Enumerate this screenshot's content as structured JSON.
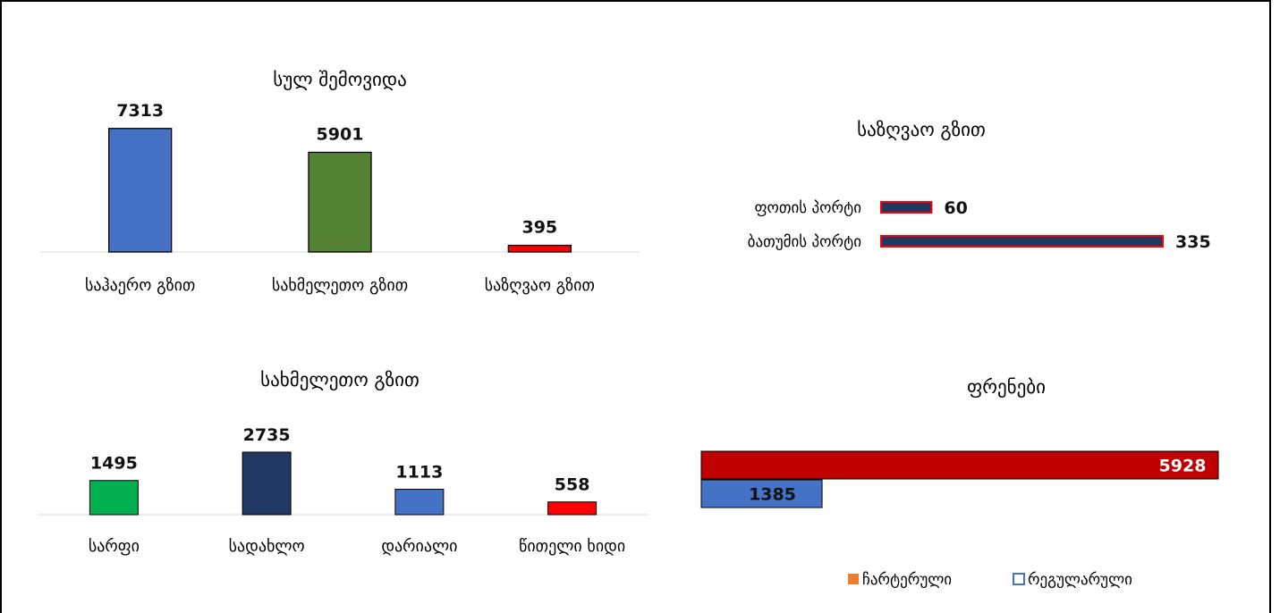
{
  "chart_data": [
    {
      "type": "bar",
      "title": "სულ შემოვიდა",
      "categories": [
        "საჰაერო გზით",
        "სახმელეთო გზით",
        "საზღვაო გზით"
      ],
      "values": [
        7313,
        5901,
        395
      ],
      "colors": [
        "#4472C4",
        "#548235",
        "#FF0000"
      ],
      "ylim": [
        0,
        8500
      ],
      "grid": false
    },
    {
      "type": "bar",
      "orientation": "horizontal",
      "title": "საზღვაო გზით",
      "categories": [
        "ფოთის პორტი",
        "ბათუმის პორტი"
      ],
      "values": [
        60,
        335
      ],
      "colors": [
        "#203864",
        "#203864"
      ],
      "outline": "#FF0000",
      "xlim": [
        0,
        335
      ],
      "grid": false
    },
    {
      "type": "bar",
      "title": "სახმელეთო გზით",
      "categories": [
        "სარფი",
        "სადახლო",
        "დარიალი",
        "წითელი ხიდი"
      ],
      "values": [
        1495,
        2735,
        1113,
        558
      ],
      "colors": [
        "#00B050",
        "#1F3864",
        "#4472C4",
        "#FF0000"
      ],
      "ylim": [
        0,
        3000
      ],
      "grid": false
    },
    {
      "type": "bar",
      "orientation": "horizontal",
      "title": "ფრენები",
      "series": [
        {
          "name": "ჩარტერული",
          "values": [
            5928
          ],
          "color": "#C00000",
          "legend_color": "#ED7D31"
        },
        {
          "name": "რეგულარული",
          "values": [
            1385
          ],
          "color": "#4472C4",
          "legend_color": "#4472C4"
        }
      ],
      "xlim": [
        0,
        5928
      ],
      "legend": "bottom-right",
      "grid": false
    }
  ]
}
